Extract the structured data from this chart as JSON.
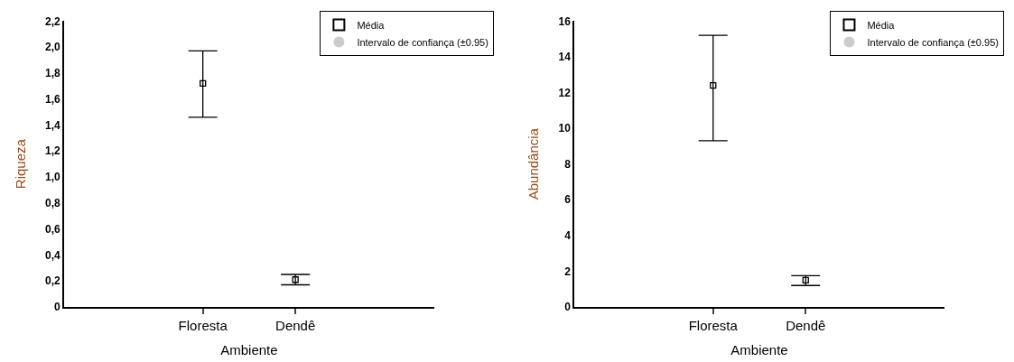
{
  "chart_data": [
    {
      "type": "scatter",
      "xlabel": "Ambiente",
      "ylabel": "Riqueza",
      "categories": [
        "Floresta",
        "Dendê"
      ],
      "ylim": [
        0,
        2.2
      ],
      "yticks": [
        0,
        {
          "value": 0.2,
          "label": "0,2"
        },
        {
          "value": 0.4,
          "label": "0,4"
        },
        {
          "value": 0.6,
          "label": "0,6"
        },
        {
          "value": 0.8,
          "label": "0,8"
        },
        {
          "value": 1.0,
          "label": "1,0"
        },
        {
          "value": 1.2,
          "label": "1,2"
        },
        {
          "value": 1.4,
          "label": "1,4"
        },
        {
          "value": 1.6,
          "label": "1,6"
        },
        {
          "value": 1.8,
          "label": "1,8"
        },
        {
          "value": 2.0,
          "label": "2,0"
        },
        {
          "value": 2.2,
          "label": "2,2"
        }
      ],
      "series": [
        {
          "name": "Média",
          "color": "#000000",
          "marker": "square",
          "values": [
            1.72,
            0.21
          ],
          "errors": [
            [
              1.46,
              1.97
            ],
            [
              0.17,
              0.25
            ]
          ]
        }
      ],
      "annotations": [
        "Intervalo de confiança (±0.95)"
      ],
      "legend": "top right"
    },
    {
      "type": "scatter",
      "xlabel": "Ambiente",
      "ylabel": "Abundância",
      "categories": [
        "Floresta",
        "Dendê"
      ],
      "ylim": [
        0,
        16
      ],
      "yticks": [
        0,
        2,
        4,
        6,
        8,
        10,
        12,
        14,
        16
      ],
      "series": [
        {
          "name": "Média",
          "color": "#000000",
          "marker": "square",
          "values": [
            12.4,
            1.5
          ],
          "errors": [
            [
              9.3,
              15.2
            ],
            [
              1.2,
              1.75
            ]
          ]
        }
      ],
      "annotations": [
        "Intervalo de confiança (±0.95)"
      ],
      "legend": "top right"
    }
  ]
}
